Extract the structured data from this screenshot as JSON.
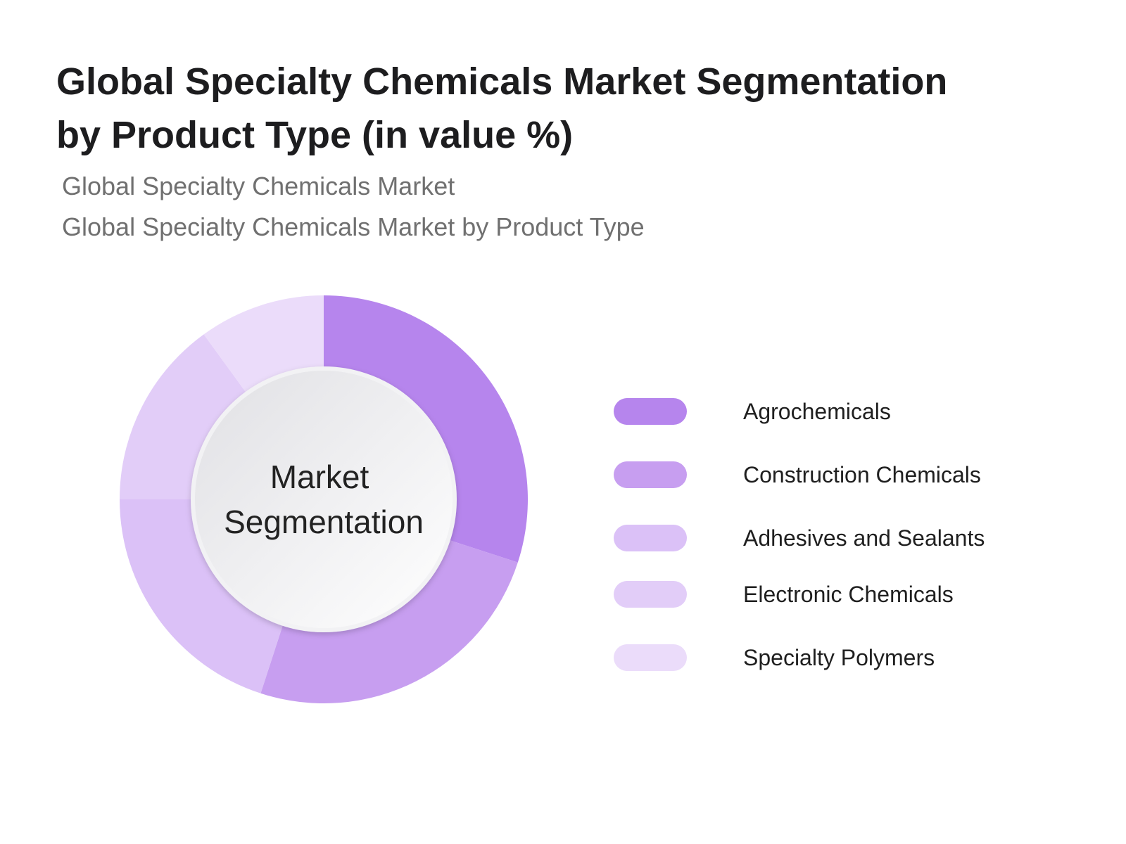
{
  "header": {
    "title": "Global Specialty Chemicals Market Segmentation by Product Type (in value %)",
    "subtitle_1": "Global Specialty Chemicals Market",
    "subtitle_2": "Global Specialty Chemicals Market by Product Type"
  },
  "chart_data": {
    "type": "pie",
    "donut": true,
    "center_label_lines": [
      "Market",
      "Segmentation"
    ],
    "categories": [
      "Agrochemicals",
      "Construction Chemicals",
      "Adhesives and Sealants",
      "Electronic Chemicals",
      "Specialty Polymers"
    ],
    "values": [
      30,
      25,
      20,
      15,
      10
    ],
    "colors": [
      "#b685ed",
      "#c79ef0",
      "#dbc1f7",
      "#e2cdf8",
      "#ebdcfa"
    ],
    "legend_position": "right"
  }
}
